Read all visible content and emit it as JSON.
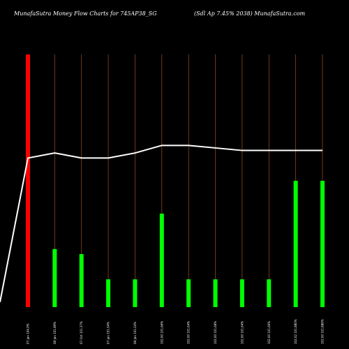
{
  "title_left": "MunafaSutra  Money Flow  Charts for 745AP38_SG",
  "title_right": "(Sdl Ap 7.45% 2038) MunafaSutra.com",
  "chart_data": {
    "type": "bar",
    "categories": [
      "07-Jan 104.0%",
      "08-Jan 101.89%",
      "07-Oct 101.37%",
      "07-Jan 101.04%",
      "08-Jan 101.24%",
      "102.00 101.66%",
      "102.00 101.64%",
      "102.00 101.68%",
      "102.00 101.64%",
      "102.00 101.66%",
      "102.02 101.880%",
      "102.00 101.886%"
    ],
    "values": [
      100,
      23,
      21,
      11,
      11,
      37,
      11,
      11,
      11,
      11,
      50,
      50
    ],
    "bar_colors": [
      "#ff0000",
      "#00ff00",
      "#00ff00",
      "#00ff00",
      "#00ff00",
      "#00ff00",
      "#00ff00",
      "#00ff00",
      "#00ff00",
      "#00ff00",
      "#00ff00",
      "#00ff00"
    ],
    "line_start": 2,
    "line": [
      59,
      61,
      59,
      59,
      61,
      64,
      64,
      63,
      62,
      62,
      62,
      62
    ],
    "ylim": [
      0,
      100
    ],
    "grid": true,
    "grid_color": "#a0521e",
    "line_color": "#ffffff"
  }
}
